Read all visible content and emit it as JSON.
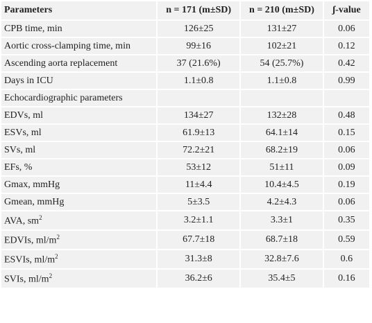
{
  "table": {
    "header": [
      "Parameters",
      "n = 171 (m±SD)",
      "n = 210 (m±SD)",
      "ʃ-value"
    ],
    "rows": [
      {
        "label": "CPB time, min",
        "values": [
          "126±25",
          "131±27",
          "0.06"
        ]
      },
      {
        "label": "Aortic cross-clamping time, min",
        "values": [
          "99±16",
          "102±21",
          "0.12"
        ]
      },
      {
        "label": "Ascending aorta replacement",
        "values": [
          "37 (21.6%)",
          "54 (25.7%)",
          "0.42"
        ]
      },
      {
        "label": "Days in ICU",
        "values": [
          "1.1±0.8",
          "1.1±0.8",
          "0.99"
        ]
      },
      {
        "label": "Echocardiographic parameters"
      },
      {
        "label": "EDVs, ml",
        "values": [
          "134±27",
          "132±28",
          "0.48"
        ]
      },
      {
        "label": "ESVs, ml",
        "values": [
          "61.9±13",
          "64.1±14",
          "0.15"
        ]
      },
      {
        "label": "SVs, ml",
        "values": [
          "72.2±21",
          "68.2±19",
          "0.06"
        ]
      },
      {
        "label": "EFs, %",
        "values": [
          "53±12",
          "51±11",
          "0.09"
        ]
      },
      {
        "label": "Gmax, mmHg",
        "values": [
          "11±4.4",
          "10.4±4.5",
          "0.19"
        ]
      },
      {
        "label": "Gmean, mmHg",
        "values": [
          "5±3.5",
          "4.2±4.3",
          "0.06"
        ]
      },
      {
        "label": "AVA, sm",
        "sup": "2",
        "values": [
          "3.2±1.1",
          "3.3±1",
          "0.35"
        ]
      },
      {
        "label": "EDVIs, ml/m",
        "sup": "2",
        "values": [
          "67.7±18",
          "68.7±18",
          "0.59"
        ]
      },
      {
        "label": "ESVIs, ml/m",
        "sup": "2",
        "values": [
          "31.3±8",
          "32.8±7.6",
          "0.6"
        ]
      },
      {
        "label": "SVIs, ml/m",
        "sup": "2",
        "values": [
          "36.2±6",
          "35.4±5",
          "0.16"
        ]
      }
    ]
  }
}
